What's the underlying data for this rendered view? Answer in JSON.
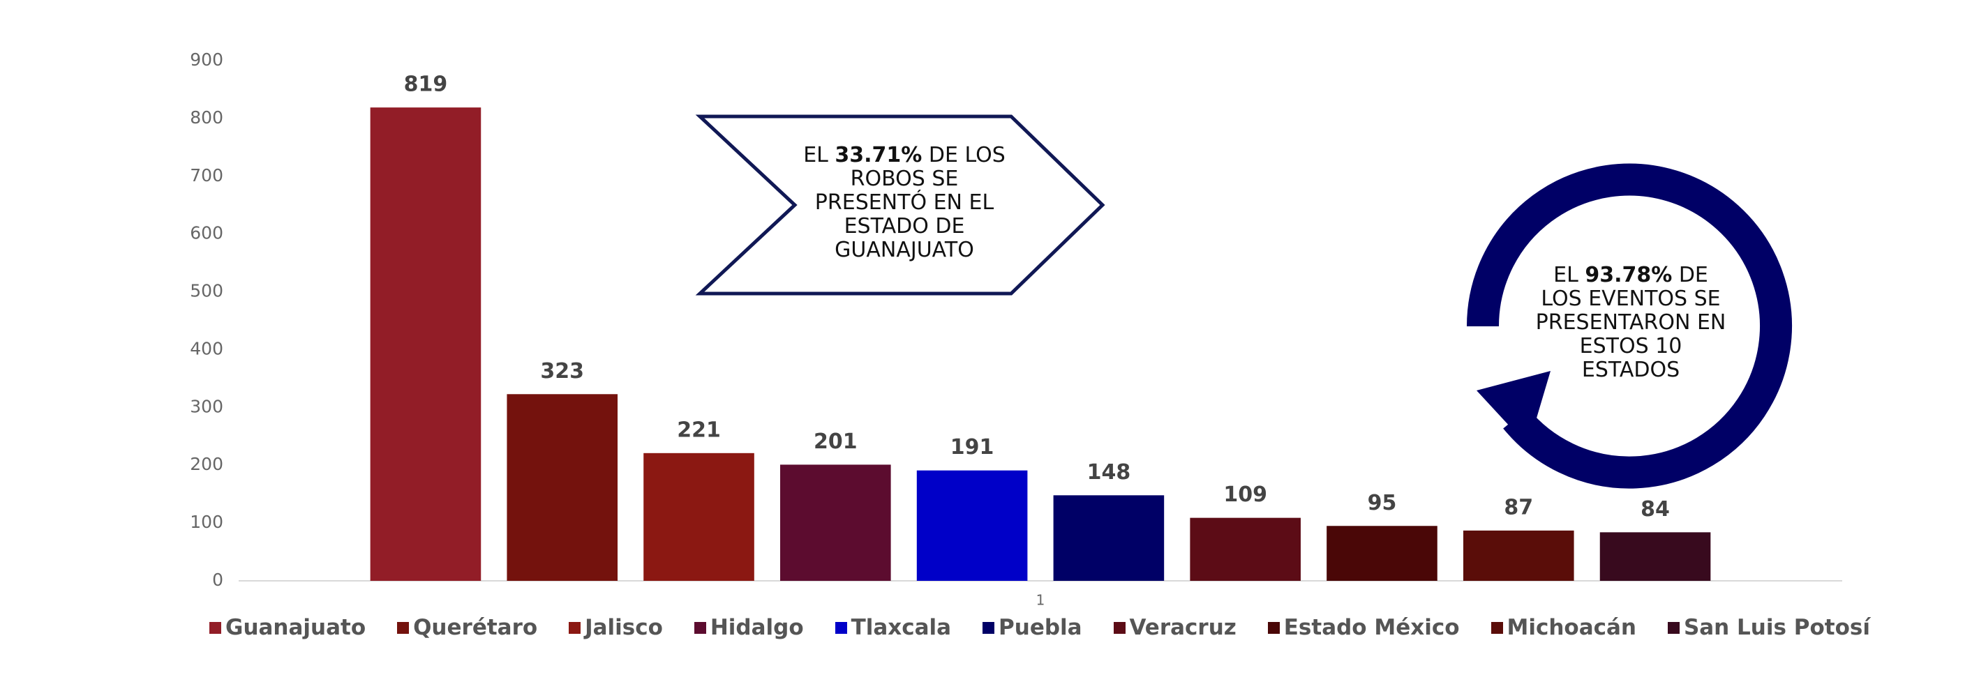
{
  "chart_data": {
    "type": "bar",
    "categories": [
      "1"
    ],
    "series": [
      {
        "name": "Guanajuato",
        "color": "#921d27",
        "values": [
          819
        ]
      },
      {
        "name": "Querétaro",
        "color": "#74120d",
        "values": [
          323
        ]
      },
      {
        "name": "Jalisco",
        "color": "#8b1812",
        "values": [
          221
        ]
      },
      {
        "name": "Hidalgo",
        "color": "#5c0c2f",
        "values": [
          201
        ]
      },
      {
        "name": "Tlaxcala",
        "color": "#0000c8",
        "values": [
          191
        ]
      },
      {
        "name": "Puebla",
        "color": "#000066",
        "values": [
          148
        ]
      },
      {
        "name": "Veracruz",
        "color": "#5c0c16",
        "values": [
          109
        ]
      },
      {
        "name": "Estado México",
        "color": "#4a0707",
        "values": [
          95
        ]
      },
      {
        "name": "Michoacán",
        "color": "#5a0d09",
        "values": [
          87
        ]
      },
      {
        "name": "San Luis Potosí",
        "color": "#380a1e",
        "values": [
          84
        ]
      }
    ],
    "ylim": [
      0,
      900
    ],
    "yticks": [
      0,
      100,
      200,
      300,
      400,
      500,
      600,
      700,
      800,
      900
    ],
    "grid": false,
    "legend": "bottom",
    "annotations": [
      {
        "text": [
          "EL ",
          "33.71%",
          " DE LOS ROBOS SE PRESENTÓ EN EL ESTADO DE GUANAJUATO"
        ]
      },
      {
        "text": [
          "EL ",
          "93.78%",
          " DE LOS EVENTOS SE PRESENTARON EN ESTOS 10 ESTADOS"
        ]
      }
    ]
  }
}
